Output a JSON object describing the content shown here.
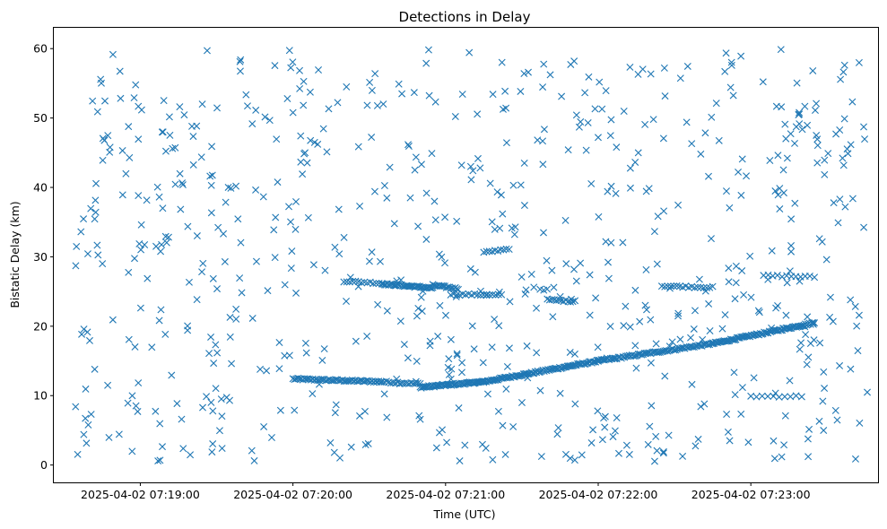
{
  "chart_data": {
    "type": "scatter",
    "title": "Detections in Delay",
    "xlabel": "Time (UTC)",
    "ylabel": "Bistatic Delay (km)",
    "marker": "x",
    "color": "#1f77b4",
    "grid": false,
    "xlim": [
      "2025-04-02 07:18:26",
      "2025-04-02 07:23:50"
    ],
    "ylim": [
      -2.5,
      63
    ],
    "xticks": [
      "2025-04-02 07:19:00",
      "2025-04-02 07:20:00",
      "2025-04-02 07:21:00",
      "2025-04-02 07:22:00",
      "2025-04-02 07:23:00"
    ],
    "yticks": [
      0,
      10,
      20,
      30,
      40,
      50,
      60
    ],
    "tracks": [
      {
        "start": "2025-04-02 07:20:00",
        "end": "2025-04-02 07:20:35",
        "y_start": 12.4,
        "y_end": 12.0,
        "count": 55
      },
      {
        "start": "2025-04-02 07:20:35",
        "end": "2025-04-02 07:20:50",
        "y_start": 12.0,
        "y_end": 11.7,
        "count": 18
      },
      {
        "start": "2025-04-02 07:20:50",
        "end": "2025-04-02 07:21:15",
        "y_start": 11.2,
        "y_end": 12.0,
        "count": 60
      },
      {
        "start": "2025-04-02 07:21:15",
        "end": "2025-04-02 07:22:00",
        "y_start": 12.0,
        "y_end": 15.0,
        "count": 90
      },
      {
        "start": "2025-04-02 07:22:00",
        "end": "2025-04-02 07:22:45",
        "y_start": 15.0,
        "y_end": 17.5,
        "count": 75
      },
      {
        "start": "2025-04-02 07:22:45",
        "end": "2025-04-02 07:23:25",
        "y_start": 17.5,
        "y_end": 20.5,
        "count": 80
      },
      {
        "start": "2025-04-02 07:20:20",
        "end": "2025-04-02 07:20:35",
        "y_start": 26.5,
        "y_end": 26.2,
        "count": 14
      },
      {
        "start": "2025-04-02 07:20:35",
        "end": "2025-04-02 07:20:55",
        "y_start": 26.1,
        "y_end": 25.5,
        "count": 40
      },
      {
        "start": "2025-04-02 07:20:55",
        "end": "2025-04-02 07:21:05",
        "y_start": 25.9,
        "y_end": 25.4,
        "count": 18
      },
      {
        "start": "2025-04-02 07:21:02",
        "end": "2025-04-02 07:21:22",
        "y_start": 24.6,
        "y_end": 24.5,
        "count": 18
      },
      {
        "start": "2025-04-02 07:21:15",
        "end": "2025-04-02 07:21:25",
        "y_start": 30.6,
        "y_end": 31.2,
        "count": 10
      },
      {
        "start": "2025-04-02 07:21:40",
        "end": "2025-04-02 07:21:50",
        "y_start": 23.8,
        "y_end": 23.6,
        "count": 12
      },
      {
        "start": "2025-04-02 07:22:25",
        "end": "2025-04-02 07:22:45",
        "y_start": 25.8,
        "y_end": 25.6,
        "count": 18
      },
      {
        "start": "2025-04-02 07:23:05",
        "end": "2025-04-02 07:23:25",
        "y_start": 27.3,
        "y_end": 27.1,
        "count": 12
      },
      {
        "start": "2025-04-02 07:23:00",
        "end": "2025-04-02 07:23:20",
        "y_start": 9.9,
        "y_end": 9.9,
        "count": 10
      }
    ],
    "clutter_points": 720
  }
}
